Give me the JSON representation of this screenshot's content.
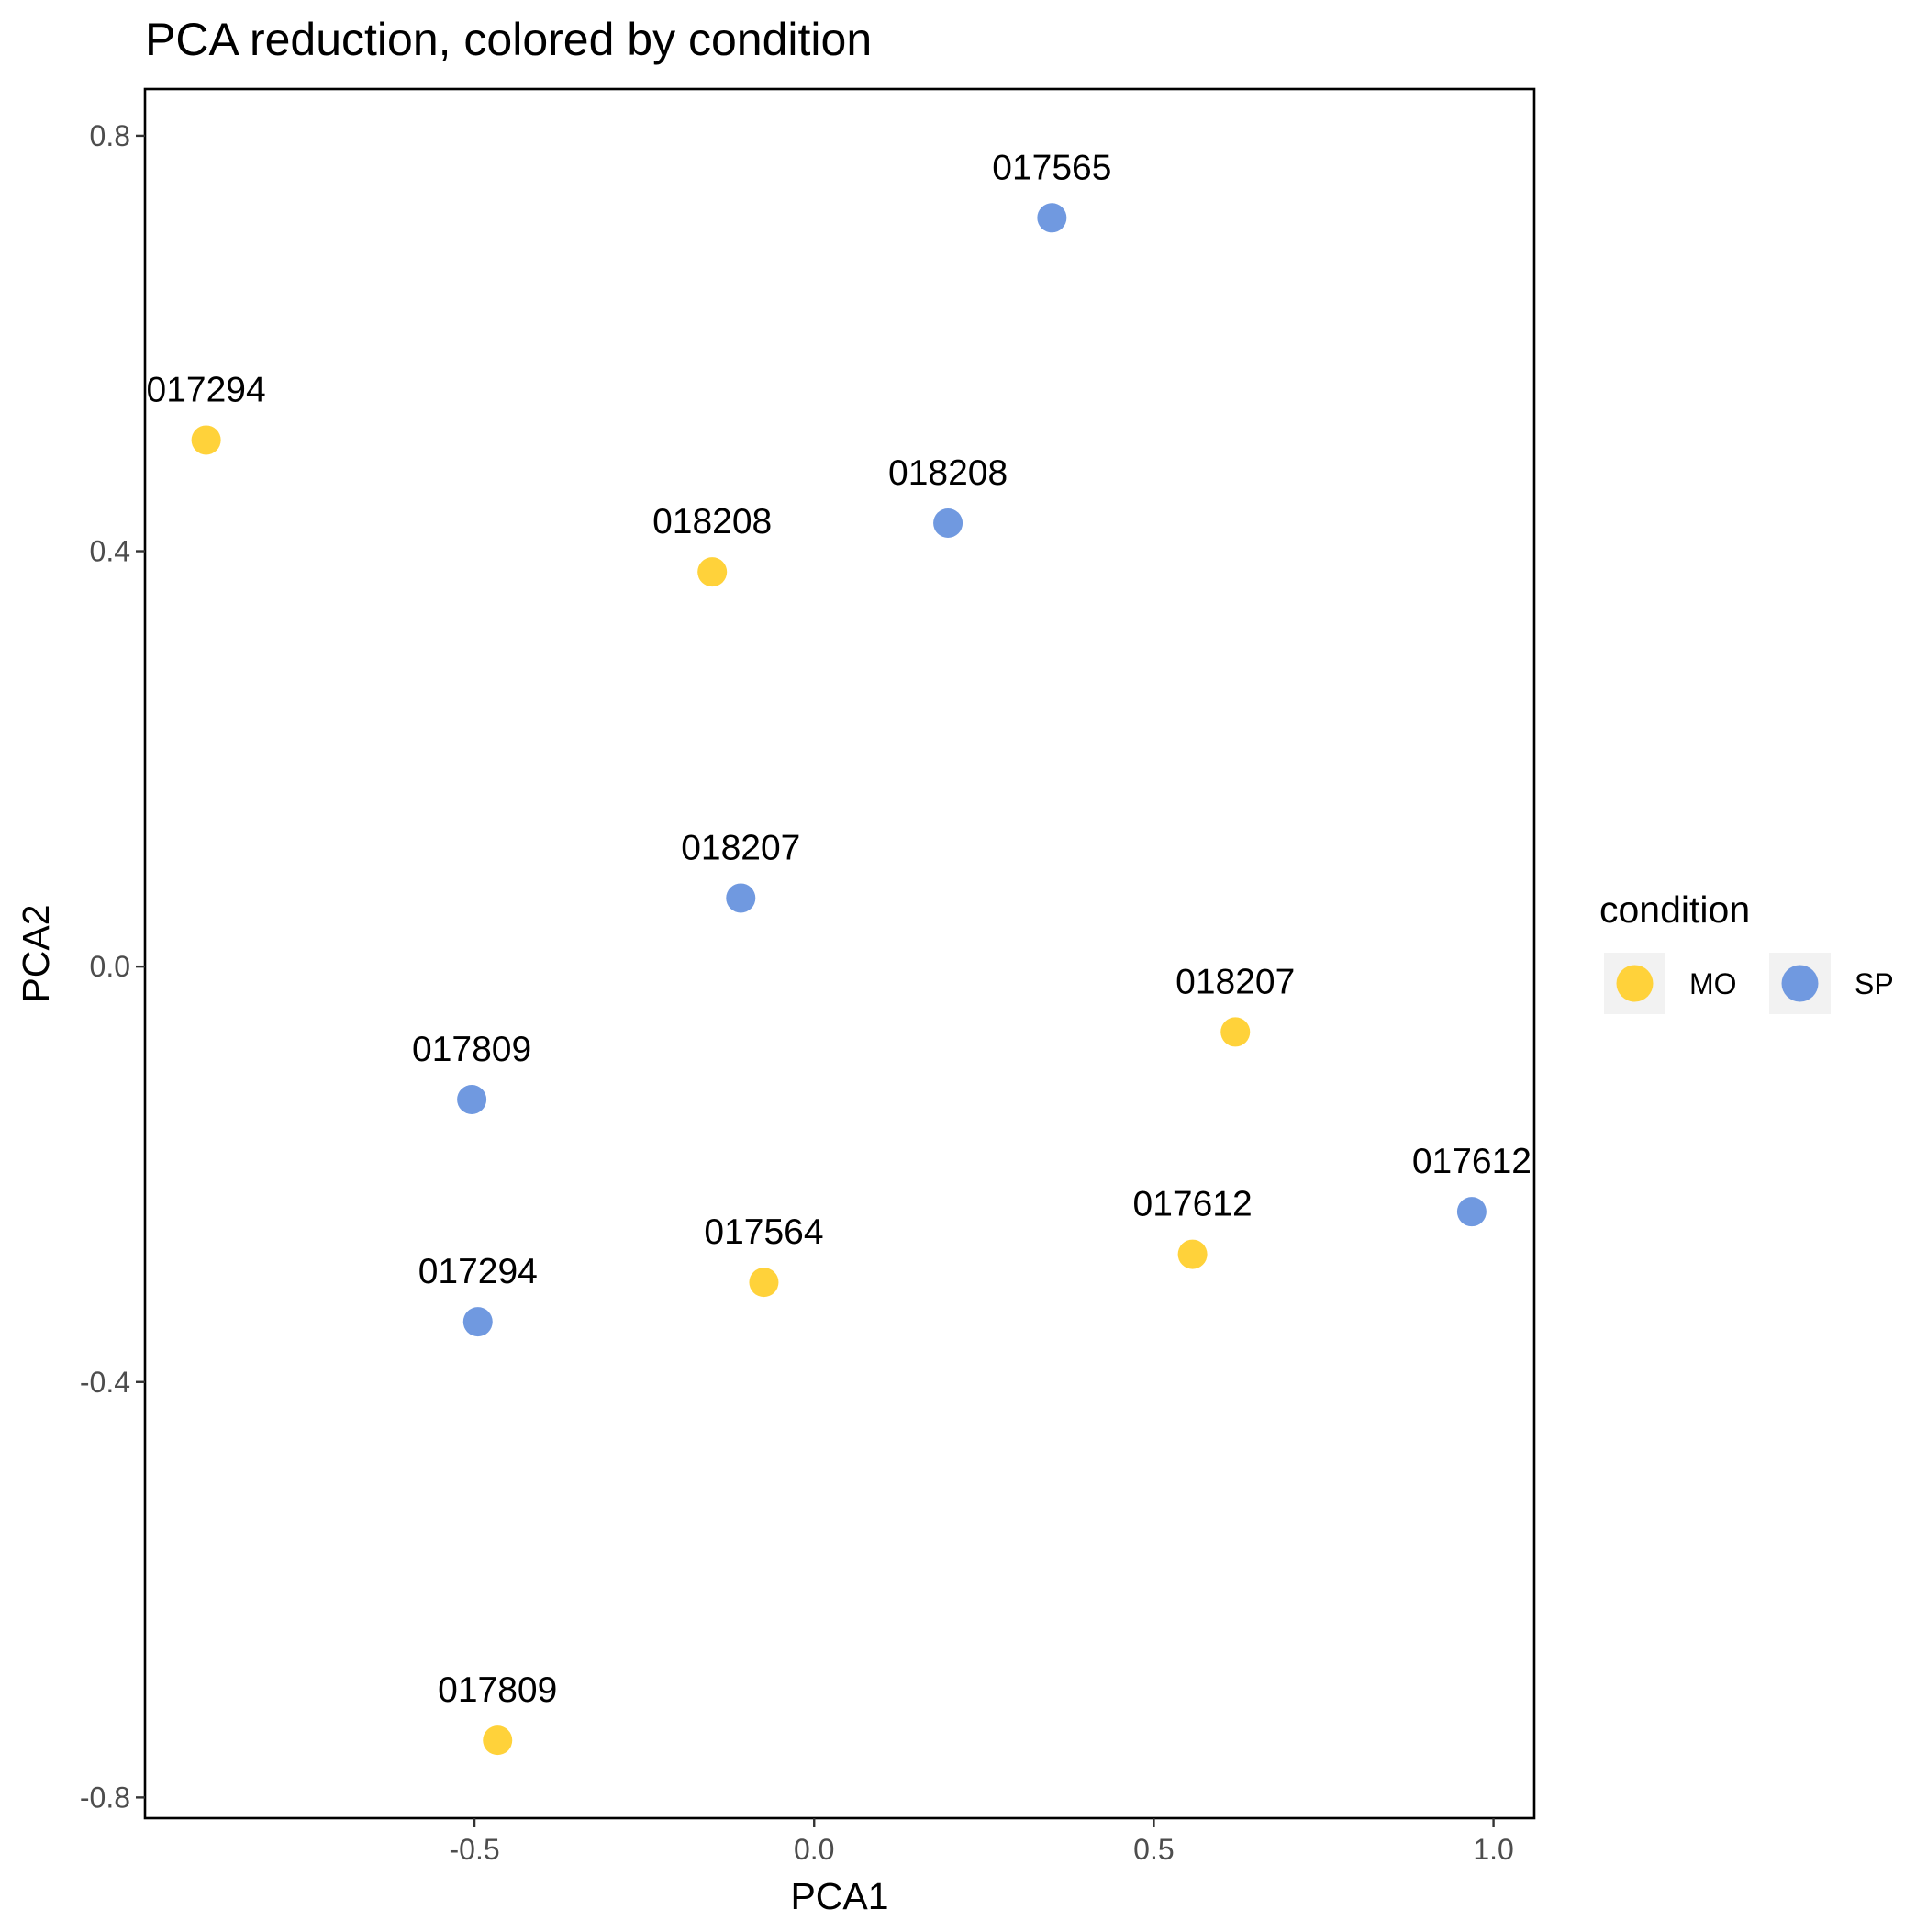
{
  "chart_data": {
    "type": "scatter",
    "title": "PCA reduction, colored by condition",
    "xlabel": "PCA1",
    "ylabel": "PCA2",
    "xlim": [
      -0.985,
      1.06
    ],
    "ylim": [
      -0.82,
      0.845
    ],
    "x_ticks": [
      -0.5,
      0.0,
      0.5,
      1.0
    ],
    "x_tick_labels": [
      "-0.5",
      "0.0",
      "0.5",
      "1.0"
    ],
    "y_ticks": [
      -0.8,
      -0.4,
      0.0,
      0.4,
      0.8
    ],
    "y_tick_labels": [
      "-0.8",
      "-0.4",
      "0.0",
      "0.4",
      "0.8"
    ],
    "grid": false,
    "legend": {
      "title": "condition",
      "position": "right",
      "items": [
        {
          "label": "MO",
          "color": "#FFD23A"
        },
        {
          "label": "SP",
          "color": "#7099E0"
        }
      ]
    },
    "series": [
      {
        "name": "MO",
        "color": "#FFD23A",
        "points": [
          {
            "x": -0.895,
            "y": 0.507,
            "label": "017294"
          },
          {
            "x": -0.15,
            "y": 0.38,
            "label": "018208"
          },
          {
            "x": 0.62,
            "y": -0.063,
            "label": "018207"
          },
          {
            "x": 0.557,
            "y": -0.277,
            "label": "017612"
          },
          {
            "x": -0.074,
            "y": -0.304,
            "label": "017564"
          },
          {
            "x": -0.466,
            "y": -0.745,
            "label": "017809"
          }
        ]
      },
      {
        "name": "SP",
        "color": "#7099E0",
        "points": [
          {
            "x": 0.35,
            "y": 0.721,
            "label": "017565"
          },
          {
            "x": 0.197,
            "y": 0.427,
            "label": "018208"
          },
          {
            "x": -0.108,
            "y": 0.066,
            "label": "018207"
          },
          {
            "x": -0.504,
            "y": -0.128,
            "label": "017809"
          },
          {
            "x": 0.968,
            "y": -0.236,
            "label": "017612"
          },
          {
            "x": -0.495,
            "y": -0.342,
            "label": "017294"
          }
        ]
      }
    ]
  }
}
